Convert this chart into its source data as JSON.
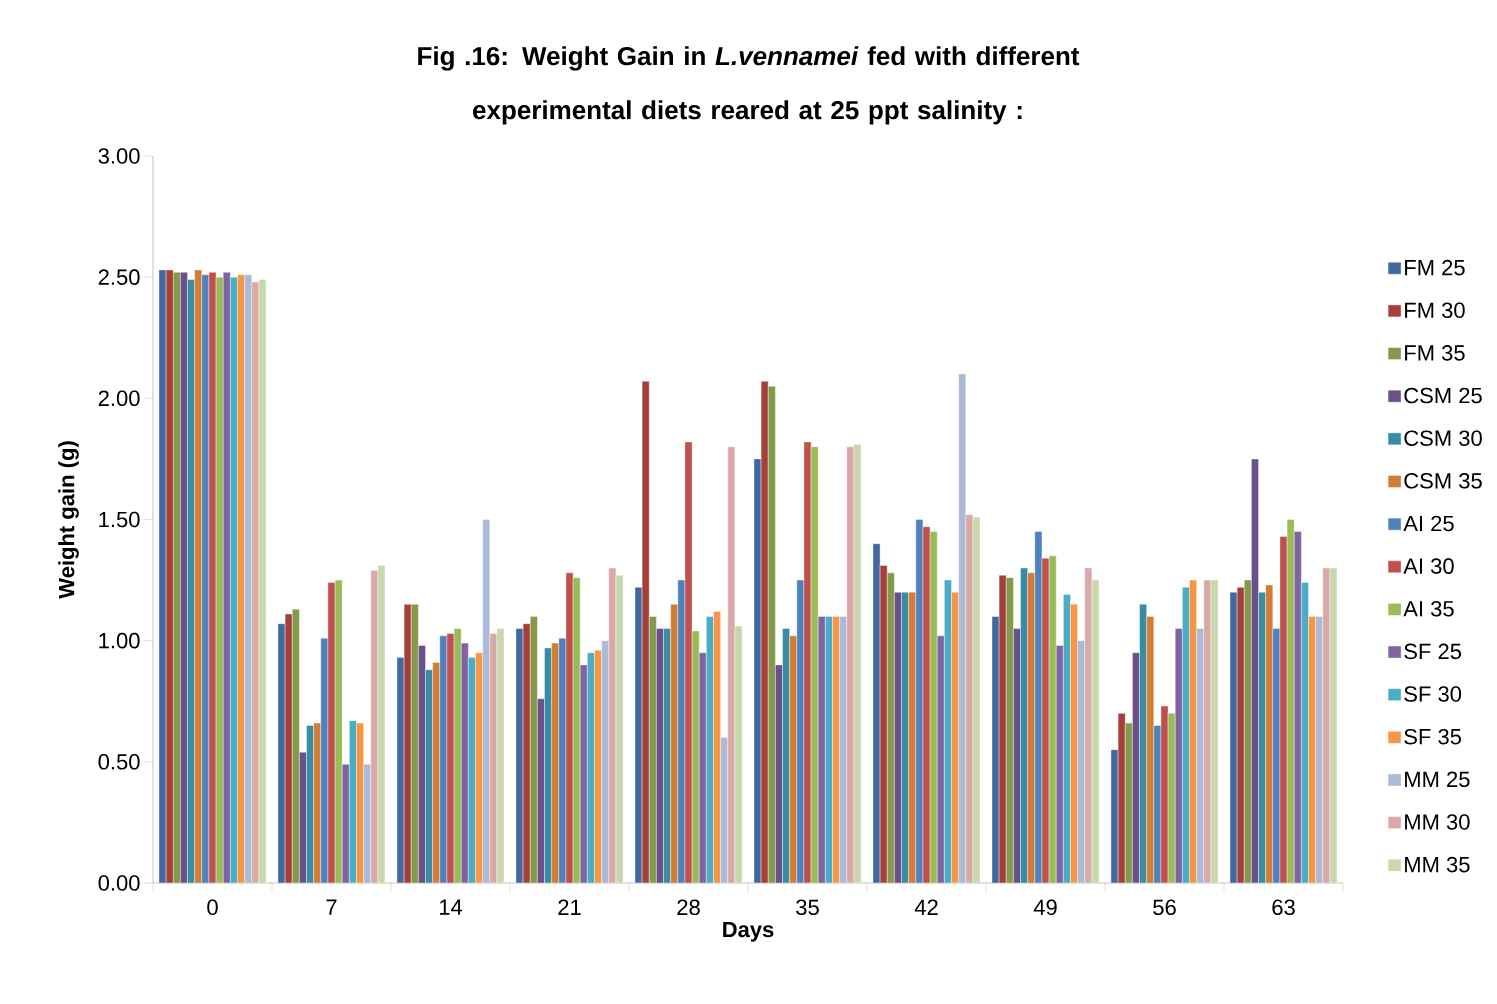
{
  "chart_data": {
    "type": "bar",
    "title": "Fig .16:  Weight Gain in *L.vennamei* fed with different experimental diets reared at 25 ppt salinity :",
    "xlabel": "Days",
    "ylabel": "Weight gain (g)",
    "categories": [
      "0",
      "7",
      "14",
      "21",
      "28",
      "35",
      "42",
      "49",
      "56",
      "63"
    ],
    "ylim": [
      0,
      3
    ],
    "yticks": [
      {
        "value": 0,
        "label": "0.00"
      },
      {
        "value": 0.5,
        "label": "0.50"
      },
      {
        "value": 1,
        "label": "1.00"
      },
      {
        "value": 1.5,
        "label": "1.50"
      },
      {
        "value": 2,
        "label": "2.00"
      },
      {
        "value": 2.5,
        "label": "2.50"
      },
      {
        "value": 3,
        "label": "3.00"
      }
    ],
    "grid": false,
    "legend": "right",
    "series": [
      {
        "name": "FM 25",
        "color": "#4169a0",
        "values": [
          2.53,
          1.07,
          0.93,
          1.05,
          1.22,
          1.75,
          1.4,
          1.1,
          0.55,
          1.2
        ]
      },
      {
        "name": "FM 30",
        "color": "#a53f3c",
        "values": [
          2.53,
          1.11,
          1.15,
          1.07,
          2.07,
          2.07,
          1.31,
          1.27,
          0.7,
          1.22
        ]
      },
      {
        "name": "FM 35",
        "color": "#84994a",
        "values": [
          2.52,
          1.13,
          1.15,
          1.1,
          1.1,
          2.05,
          1.28,
          1.26,
          0.66,
          1.25
        ]
      },
      {
        "name": "CSM 25",
        "color": "#6b5189",
        "values": [
          2.52,
          0.54,
          0.98,
          0.76,
          1.05,
          0.9,
          1.2,
          1.05,
          0.95,
          1.75
        ]
      },
      {
        "name": "CSM 30",
        "color": "#3a8ca3",
        "values": [
          2.49,
          0.65,
          0.88,
          0.97,
          1.05,
          1.05,
          1.2,
          1.3,
          1.15,
          1.2
        ]
      },
      {
        "name": "CSM 35",
        "color": "#d17d34",
        "values": [
          2.53,
          0.66,
          0.91,
          0.99,
          1.15,
          1.02,
          1.2,
          1.28,
          1.1,
          1.23
        ]
      },
      {
        "name": "AI 25",
        "color": "#4f81bd",
        "values": [
          2.51,
          1.01,
          1.02,
          1.01,
          1.25,
          1.25,
          1.5,
          1.45,
          0.65,
          1.05
        ]
      },
      {
        "name": "AI 30",
        "color": "#c0504d",
        "values": [
          2.52,
          1.24,
          1.03,
          1.28,
          1.82,
          1.82,
          1.47,
          1.34,
          0.73,
          1.43
        ]
      },
      {
        "name": "AI 35",
        "color": "#9bbb59",
        "values": [
          2.5,
          1.25,
          1.05,
          1.26,
          1.04,
          1.8,
          1.45,
          1.35,
          0.7,
          1.5
        ]
      },
      {
        "name": "SF 25",
        "color": "#8064a2",
        "values": [
          2.52,
          0.49,
          0.99,
          0.9,
          0.95,
          1.1,
          1.02,
          0.98,
          1.05,
          1.45
        ]
      },
      {
        "name": "SF 30",
        "color": "#4bacc6",
        "values": [
          2.5,
          0.67,
          0.93,
          0.95,
          1.1,
          1.1,
          1.25,
          1.19,
          1.22,
          1.24
        ]
      },
      {
        "name": "SF 35",
        "color": "#f79646",
        "values": [
          2.51,
          0.66,
          0.95,
          0.96,
          1.12,
          1.1,
          1.2,
          1.15,
          1.25,
          1.1
        ]
      },
      {
        "name": "MM 25",
        "color": "#aabad7",
        "values": [
          2.51,
          0.49,
          1.5,
          1.0,
          0.6,
          1.1,
          2.1,
          1.0,
          1.05,
          1.1
        ]
      },
      {
        "name": "MM 30",
        "color": "#d9a9a8",
        "values": [
          2.48,
          1.29,
          1.03,
          1.3,
          1.8,
          1.8,
          1.52,
          1.3,
          1.25,
          1.3
        ]
      },
      {
        "name": "MM 35",
        "color": "#c9d8ac",
        "values": [
          2.49,
          1.31,
          1.05,
          1.27,
          1.06,
          1.81,
          1.51,
          1.25,
          1.25,
          1.3
        ]
      }
    ]
  }
}
